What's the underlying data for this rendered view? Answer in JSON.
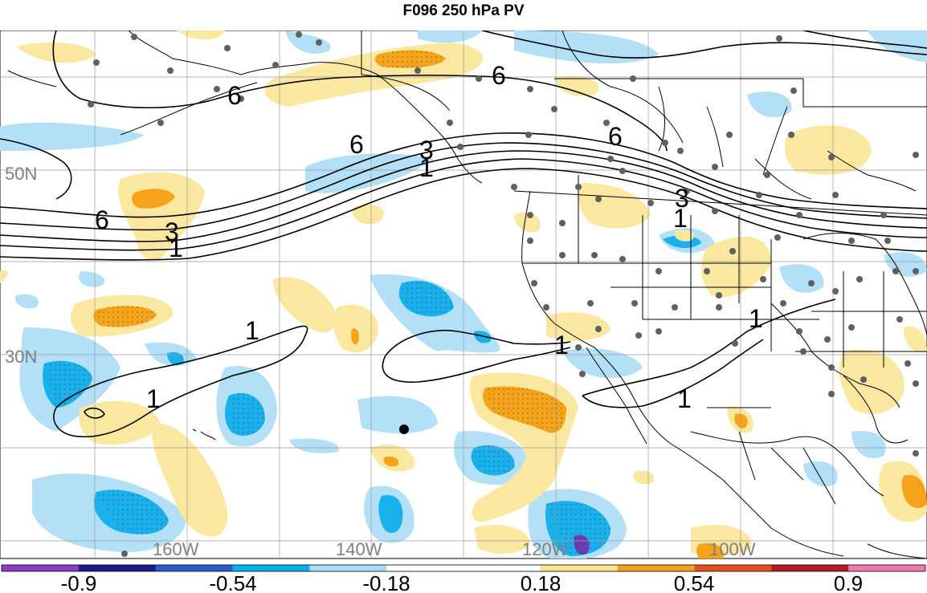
{
  "title": "F096 250 hPa PV",
  "map": {
    "lat_labels": [
      "50N",
      "30N"
    ],
    "lon_labels": [
      "160W",
      "140W",
      "120W",
      "100W"
    ],
    "contour_labels": [
      "6",
      "3",
      "1",
      "6",
      "3",
      "1",
      "6",
      "6",
      "6",
      "3",
      "1",
      "1",
      "1",
      "1",
      "1",
      "1"
    ],
    "colors": {
      "light_blue": "#b3e0f7",
      "blue": "#1ab0ec",
      "light_yellow": "#fbe8a0",
      "orange": "#f5a31a",
      "purple": "#6b3fb0",
      "border": "#000000",
      "grid": "#888888",
      "station": "#606060"
    }
  },
  "colorbar": {
    "labels": [
      "-0.9",
      "-0.54",
      "-0.18",
      "0.18",
      "0.54",
      "0.9"
    ],
    "colors": [
      "#8a3ec9",
      "#1a1e8a",
      "#2d5bd0",
      "#00b4f0",
      "#a8dcf5",
      "#ffffff",
      "#ffffff",
      "#fbe38c",
      "#f5a01a",
      "#e9501d",
      "#b01e24",
      "#f07ab0"
    ]
  }
}
